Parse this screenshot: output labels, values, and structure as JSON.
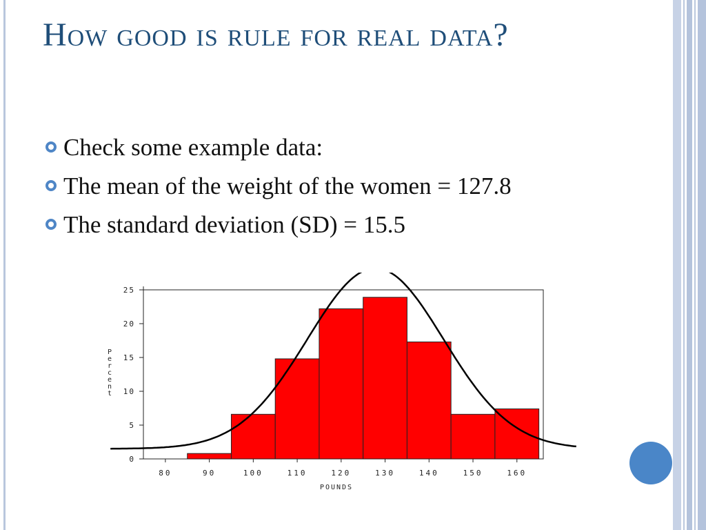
{
  "slide": {
    "title": "How good is rule for real data?",
    "bullets": [
      "Check some example data:",
      "The mean of the weight of the women = 127.8",
      "The standard deviation (SD) = 15.5"
    ]
  },
  "colors": {
    "title": "#1f4e79",
    "bullet_marker": "#4f86c6",
    "bar_fill": "#ff0000",
    "curve": "#000000",
    "accent_circle": "#4a86c8",
    "stripes": "#b9c7dd"
  },
  "chart_data": {
    "type": "bar",
    "title": "",
    "xlabel": "POUNDS",
    "ylabel": "Percent",
    "x_ticks": [
      "80",
      "90",
      "100",
      "110",
      "120",
      "130",
      "140",
      "150",
      "160"
    ],
    "y_ticks": [
      "0",
      "5",
      "10",
      "15",
      "20",
      "25"
    ],
    "xlim": [
      75,
      166
    ],
    "ylim": [
      0,
      25
    ],
    "grid": false,
    "bins": [
      {
        "center": 90,
        "value": 0.8
      },
      {
        "center": 100,
        "value": 6.6
      },
      {
        "center": 110,
        "value": 14.8
      },
      {
        "center": 120,
        "value": 22.2
      },
      {
        "center": 130,
        "value": 23.9
      },
      {
        "center": 140,
        "value": 17.3
      },
      {
        "center": 150,
        "value": 6.6
      },
      {
        "center": 160,
        "value": 7.4
      }
    ],
    "bin_width": 10,
    "overlay": {
      "type": "normal_curve",
      "mean": 127.8,
      "sd": 15.5,
      "peak_percent": 26.7
    }
  }
}
